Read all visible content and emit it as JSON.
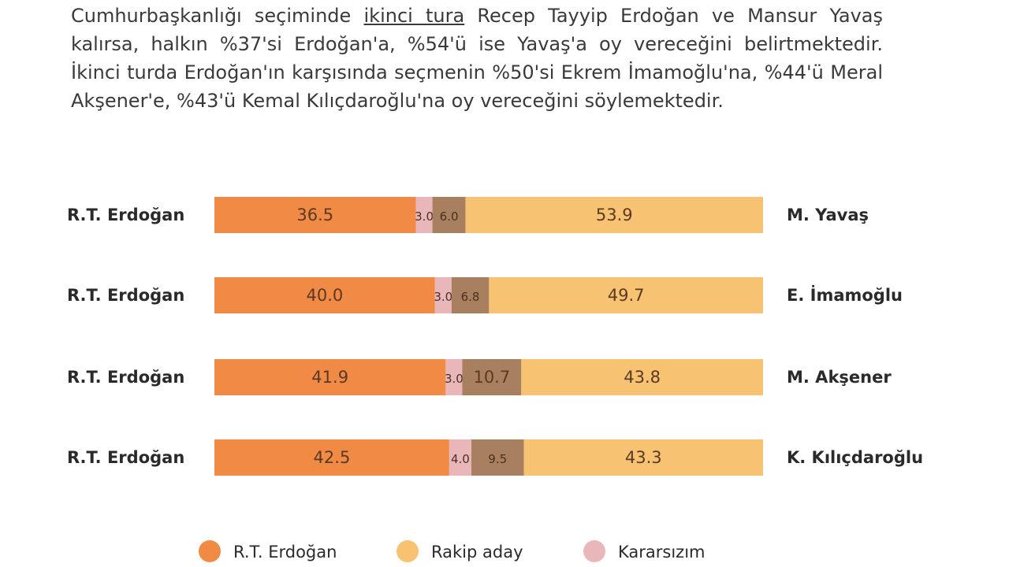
{
  "intro": {
    "before_link": "Cumhurbaşkanlığı seçiminde ",
    "link": "ikinci tura",
    "after_link": " Recep Tayyip Erdoğan ve Mansur Yavaş kalırsa, halkın %37'si Erdoğan'a, %54'ü ise Yavaş'a oy vereceğini belirtmektedir. İkinci turda Erdoğan'ın karşısında seçmenin %50'si Ekrem İmamoğlu'na, %44'ü Meral Akşener'e, %43'ü Kemal Kılıçdaroğlu'na oy vereceğini söylemektedir."
  },
  "colors": {
    "erdogan": "#f08a45",
    "undecided": "#e9b7b9",
    "other": "#a8805f",
    "rival": "#f7c271"
  },
  "chart_data": {
    "type": "bar",
    "orientation": "horizontal",
    "stacked": true,
    "categories": [
      "M. Yavaş",
      "E. İmamoğlu",
      "M. Akşener",
      "K. Kılıçdaroğlu"
    ],
    "left_labels": [
      "R.T. Erdoğan",
      "R.T. Erdoğan",
      "R.T. Erdoğan",
      "R.T. Erdoğan"
    ],
    "series": [
      {
        "name": "R.T. Erdoğan",
        "values": [
          36.5,
          40.0,
          41.9,
          42.5
        ]
      },
      {
        "name": "Kararsızım",
        "values": [
          3.0,
          3.0,
          3.0,
          4.0
        ]
      },
      {
        "values": [
          6.0,
          6.8,
          10.7,
          9.5
        ]
      },
      {
        "name": "Rakip aday",
        "values": [
          53.9,
          49.7,
          43.8,
          43.3
        ]
      }
    ],
    "value_labels": [
      [
        "36.5",
        "3.0",
        "6.0",
        "53.9"
      ],
      [
        "40.0",
        "3.0",
        "6.8",
        "49.7"
      ],
      [
        "41.9",
        "3.0",
        "10.7",
        "43.8"
      ],
      [
        "42.5",
        "4.0",
        "9.5",
        "43.3"
      ]
    ],
    "legend": [
      "R.T. Erdoğan",
      "Rakip aday",
      "Kararsızım"
    ],
    "legend_position": "bottom"
  }
}
